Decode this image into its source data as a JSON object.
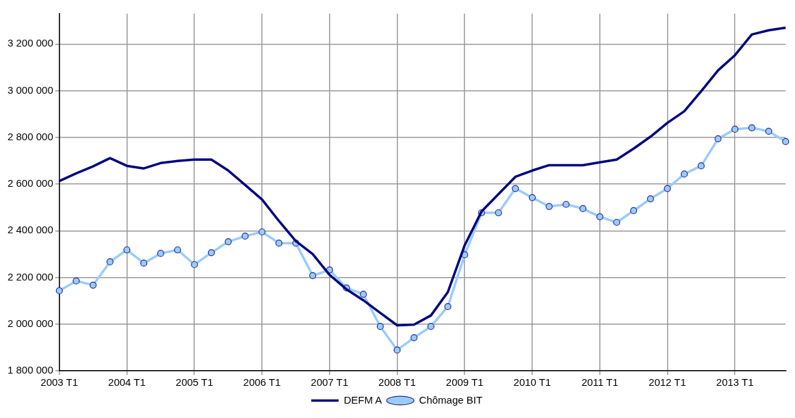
{
  "chart_data": {
    "type": "line",
    "categories": [
      "2003 T1",
      null,
      null,
      null,
      "2004 T1",
      null,
      null,
      null,
      "2005 T1",
      null,
      null,
      null,
      "2006 T1",
      null,
      null,
      null,
      "2007 T1",
      null,
      null,
      null,
      "2008 T1",
      null,
      null,
      null,
      "2009 T1",
      null,
      null,
      null,
      "2010 T1",
      null,
      null,
      null,
      "2011 T1",
      null,
      null,
      null,
      "2012 T1",
      null,
      null,
      null,
      "2013 T1",
      null,
      null,
      null
    ],
    "series": [
      {
        "name": "DEFM A",
        "color": "#000080",
        "marker": "none",
        "values": [
          2613000,
          2646000,
          2676000,
          2711000,
          2678000,
          2667000,
          2690000,
          2699000,
          2705000,
          2705000,
          2658000,
          2596000,
          2534000,
          2442000,
          2356000,
          2300000,
          2211000,
          2149000,
          2102000,
          2048000,
          1995000,
          1998000,
          2037000,
          2137000,
          2338000,
          2483000,
          2557000,
          2631000,
          2658000,
          2681000,
          2681000,
          2681000,
          2693000,
          2705000,
          2752000,
          2803000,
          2862000,
          2912000,
          2998000,
          3087000,
          3152000,
          3241000,
          3259000,
          3270000
        ]
      },
      {
        "name": "Chômage BIT",
        "color": "#99ccff",
        "marker": "circle",
        "values": [
          2143000,
          2185000,
          2167000,
          2267000,
          2318000,
          2261000,
          2303000,
          2318000,
          2255000,
          2306000,
          2353000,
          2377000,
          2395000,
          2347000,
          2347000,
          2208000,
          2232000,
          2155000,
          2128000,
          1990000,
          1889000,
          1942000,
          1990000,
          2075000,
          2297000,
          2477000,
          2477000,
          2581000,
          2542000,
          2504000,
          2513000,
          2495000,
          2460000,
          2436000,
          2486000,
          2537000,
          2581000,
          2643000,
          2678000,
          2794000,
          2835000,
          2841000,
          2826000,
          2782000
        ]
      }
    ],
    "ylim": [
      1800000,
      3330000
    ],
    "yticks": [
      {
        "value": 1800000,
        "label": "1 800 000"
      },
      {
        "value": 2000000,
        "label": "2 000 000"
      },
      {
        "value": 2200000,
        "label": "2 200 000"
      },
      {
        "value": 2400000,
        "label": "2 400 000"
      },
      {
        "value": 2600000,
        "label": "2 600 000"
      },
      {
        "value": 2800000,
        "label": "2 800 000"
      },
      {
        "value": 3000000,
        "label": "3 000 000"
      },
      {
        "value": 3200000,
        "label": "3 200 000"
      }
    ],
    "grid": true,
    "legend": "bottom"
  }
}
